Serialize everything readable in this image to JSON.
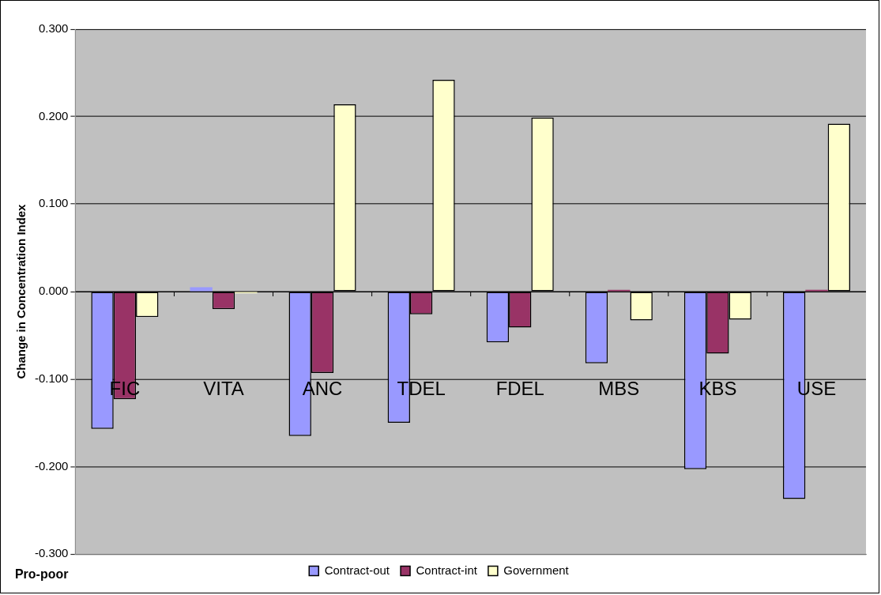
{
  "chart_data": {
    "type": "bar",
    "ylabel": "Change in Concentration Index",
    "categories": [
      "FIC",
      "VITA",
      "ANC",
      "TDEL",
      "FDEL",
      "MBS",
      "KBS",
      "USE"
    ],
    "series": [
      {
        "name": "Contract-out",
        "color": "#9999ff",
        "values": [
          -0.157,
          0.005,
          -0.165,
          -0.15,
          -0.058,
          -0.082,
          -0.203,
          -0.237
        ]
      },
      {
        "name": "Contract-int",
        "color": "#993366",
        "values": [
          -0.123,
          -0.02,
          -0.093,
          -0.026,
          -0.041,
          0.002,
          -0.071,
          0.002
        ]
      },
      {
        "name": "Government",
        "color": "#ffffcc",
        "values": [
          -0.029,
          -0.002,
          0.214,
          0.242,
          0.199,
          -0.033,
          -0.032,
          0.192
        ]
      }
    ],
    "ylim": [
      -0.3,
      0.3
    ],
    "yticks": [
      {
        "value": -0.3,
        "label": "-0.300"
      },
      {
        "value": -0.2,
        "label": "-0.200"
      },
      {
        "value": -0.1,
        "label": "-0.100"
      },
      {
        "value": 0,
        "label": "0.000"
      },
      {
        "value": 0.1,
        "label": "0.100"
      },
      {
        "value": 0.2,
        "label": "0.200"
      },
      {
        "value": 0.3,
        "label": "0.300"
      }
    ],
    "grid": "y",
    "legend": "bottom",
    "annotations": [
      "Pro-poor"
    ]
  }
}
